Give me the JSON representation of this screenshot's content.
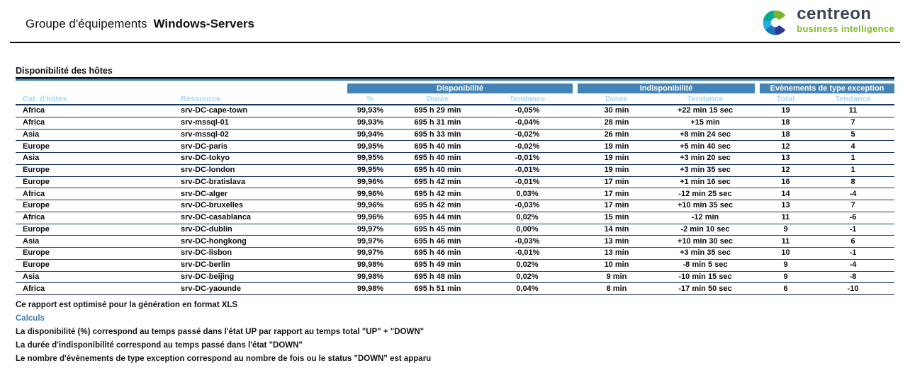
{
  "header": {
    "title_prefix": "Groupe d'équipements",
    "title_name": "Windows-Servers",
    "logo": {
      "brand": "centreon",
      "tagline": "business intelligence"
    }
  },
  "section": {
    "title": "Disponibilité des hôtes"
  },
  "table": {
    "group_headers": [
      {
        "label": "Disponibilité"
      },
      {
        "label": "Indisponibilité"
      },
      {
        "label": "Evènements de type exception"
      }
    ],
    "columns": [
      "Cat. d'hôtes",
      "Ressource",
      "%",
      "Durée",
      "Tendance",
      "Durée",
      "Tendance",
      "Total",
      "Tendance"
    ],
    "rows": [
      [
        "Africa",
        "srv-DC-cape-town",
        "99,93%",
        "695 h 29 min",
        "-0,05%",
        "30 min",
        "+22 min 15 sec",
        "19",
        "11"
      ],
      [
        "Africa",
        "srv-mssql-01",
        "99,93%",
        "695 h 31 min",
        "-0,04%",
        "28 min",
        "+15 min",
        "18",
        "7"
      ],
      [
        "Asia",
        "srv-mssql-02",
        "99,94%",
        "695 h 33 min",
        "-0,02%",
        "26 min",
        "+8 min 24 sec",
        "18",
        "5"
      ],
      [
        "Europe",
        "srv-DC-paris",
        "99,95%",
        "695 h 40 min",
        "-0,02%",
        "19 min",
        "+5 min 40 sec",
        "12",
        "4"
      ],
      [
        "Asia",
        "srv-DC-tokyo",
        "99,95%",
        "695 h 40 min",
        "-0,01%",
        "19 min",
        "+3 min 20 sec",
        "13",
        "1"
      ],
      [
        "Europe",
        "srv-DC-london",
        "99,95%",
        "695 h 40 min",
        "-0,01%",
        "19 min",
        "+3 min 35 sec",
        "12",
        "1"
      ],
      [
        "Europe",
        "srv-DC-bratislava",
        "99,96%",
        "695 h 42 min",
        "-0,01%",
        "17 min",
        "+1 min 16 sec",
        "16",
        "8"
      ],
      [
        "Africa",
        "srv-DC-alger",
        "99,96%",
        "695 h 42 min",
        "0,03%",
        "17 min",
        "-12 min 25 sec",
        "14",
        "-4"
      ],
      [
        "Europe",
        "srv-DC-bruxelles",
        "99,96%",
        "695 h 42 min",
        "-0,03%",
        "17 min",
        "+10 min 35 sec",
        "13",
        "7"
      ],
      [
        "Africa",
        "srv-DC-casablanca",
        "99,96%",
        "695 h 44 min",
        "0,02%",
        "15 min",
        "-12 min",
        "11",
        "-6"
      ],
      [
        "Europe",
        "srv-DC-dublin",
        "99,97%",
        "695 h 45 min",
        "0,00%",
        "14 min",
        "-2 min 10 sec",
        "9",
        "-1"
      ],
      [
        "Asia",
        "srv-DC-hongkong",
        "99,97%",
        "695 h 46 min",
        "-0,03%",
        "13 min",
        "+10 min 30 sec",
        "11",
        "6"
      ],
      [
        "Europe",
        "srv-DC-lisbon",
        "99,97%",
        "695 h 46 min",
        "-0,01%",
        "13 min",
        "+3 min 35 sec",
        "10",
        "-1"
      ],
      [
        "Europe",
        "srv-DC-berlin",
        "99,98%",
        "695 h 49 min",
        "0,02%",
        "10 min",
        "-8 min 5 sec",
        "9",
        "-4"
      ],
      [
        "Asia",
        "srv-DC-beijing",
        "99,98%",
        "695 h 48 min",
        "0,02%",
        "9 min",
        "-10 min 15 sec",
        "9",
        "-8"
      ],
      [
        "Africa",
        "srv-DC-yaounde",
        "99,98%",
        "695 h 51 min",
        "0,04%",
        "8 min",
        "-17 min 50 sec",
        "6",
        "-10"
      ]
    ]
  },
  "footer": {
    "note": "Ce rapport est optimisé pour la génération en format XLS",
    "calculs_label": "Calculs",
    "lines": [
      "La disponibilité (%) correspond au temps passé dans l'état UP par rapport au temps total \"UP\" + \"DOWN\"",
      "La durée d'indisponibilité correspond au temps passé dans l'état \"DOWN\"",
      "Le nombre d'évènements de type exception correspond au nombre de fois ou le status \"DOWN\" est apparu"
    ]
  },
  "colors": {
    "band-blue": "#4383B5",
    "subhead-blue": "#A5D8F3",
    "line-navy": "#17365D",
    "accent-blue": "#4080B0",
    "logo-slate": "#3A4654",
    "logo-green": "#85BB25"
  }
}
